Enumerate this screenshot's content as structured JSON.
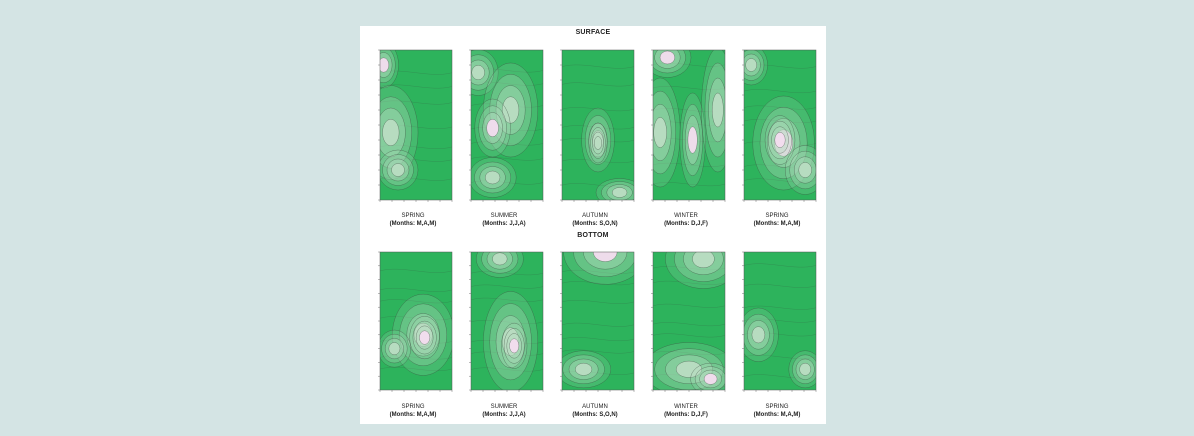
{
  "figure": {
    "sections": [
      {
        "key": "surface",
        "title": "SURFACE",
        "panels": [
          {
            "season": "SPRING",
            "months": "(Months: M,A,M)"
          },
          {
            "season": "SUMMER",
            "months": "(Months: J,J,A)"
          },
          {
            "season": "AUTUMN",
            "months": "(Months: S,O,N)"
          },
          {
            "season": "WINTER",
            "months": "(Months: D,J,F)"
          },
          {
            "season": "SPRING",
            "months": "(Months: M,A,M)"
          }
        ]
      },
      {
        "key": "bottom",
        "title": "BOTTOM",
        "panels": [
          {
            "season": "SPRING",
            "months": "(Months: M,A,M)"
          },
          {
            "season": "SUMMER",
            "months": "(Months: J,J,A)"
          },
          {
            "season": "AUTUMN",
            "months": "(Months: S,O,N)"
          },
          {
            "season": "WINTER",
            "months": "(Months: D,J,F)"
          },
          {
            "season": "SPRING",
            "months": "(Months: M,A,M)"
          }
        ]
      }
    ],
    "colors": {
      "page_background": "#d4e4e4",
      "figure_background": "#ffffff",
      "contour_high": "#2db35c",
      "contour_mid": "#b9dcc2",
      "contour_low": "#f3dcef",
      "contour_line": "#3a4a3e"
    }
  }
}
